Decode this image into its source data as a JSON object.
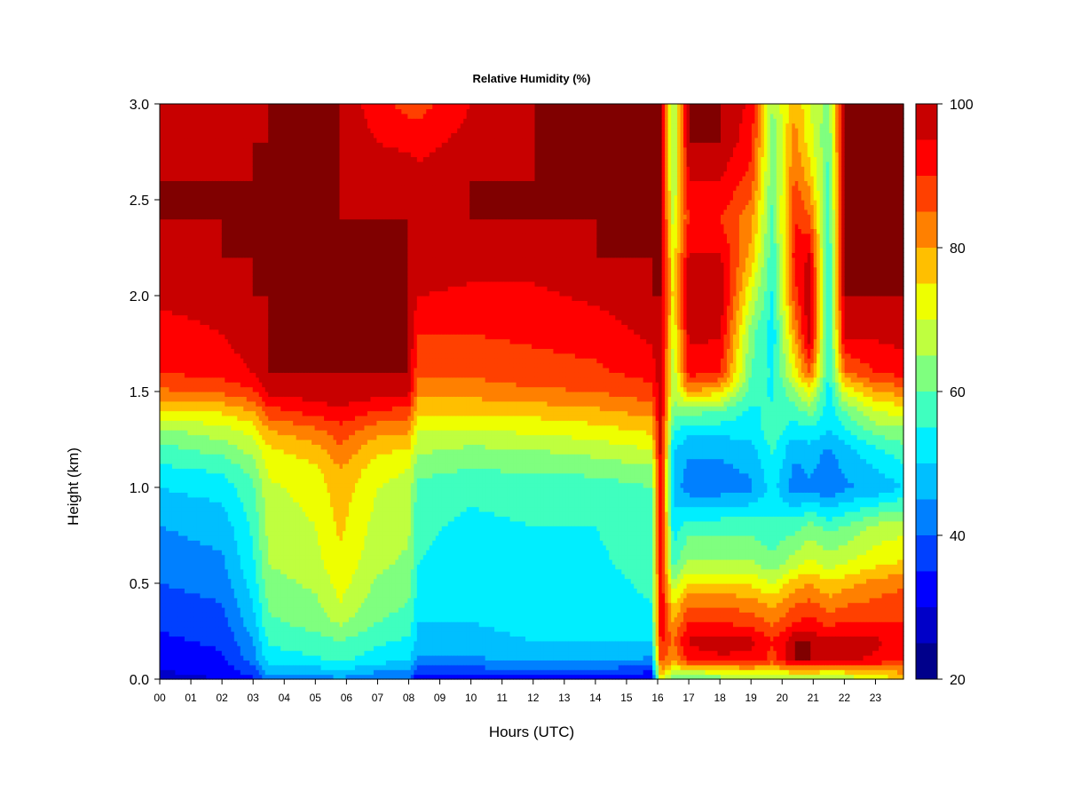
{
  "chart_data": {
    "type": "heatmap",
    "title": "Relative Humidity (%)",
    "xlabel": "Hours (UTC)",
    "ylabel": "Height (km)",
    "xlim": [
      0,
      23.9
    ],
    "ylim": [
      0.0,
      3.0
    ],
    "x_tick_values": [
      0,
      1,
      2,
      3,
      4,
      5,
      6,
      7,
      8,
      9,
      10,
      11,
      12,
      13,
      14,
      15,
      16,
      17,
      18,
      19,
      20,
      21,
      22,
      23
    ],
    "x_tick_labels": [
      "00",
      "01",
      "02",
      "03",
      "04",
      "05",
      "06",
      "07",
      "08",
      "09",
      "10",
      "11",
      "12",
      "13",
      "14",
      "15",
      "16",
      "17",
      "18",
      "19",
      "20",
      "21",
      "22",
      "23"
    ],
    "y_tick_values": [
      0.0,
      0.5,
      1.0,
      1.5,
      2.0,
      2.5,
      3.0
    ],
    "y_tick_labels": [
      "0.0",
      "0.5",
      "1.0",
      "1.5",
      "2.0",
      "2.5",
      "3.0"
    ],
    "colorbar": {
      "min": 20,
      "max": 100,
      "tick_values": [
        20,
        40,
        60,
        80,
        100
      ],
      "tick_labels": [
        "20",
        "40",
        "60",
        "80",
        "100"
      ],
      "levels": [
        20,
        25,
        30,
        35,
        40,
        45,
        50,
        55,
        60,
        65,
        70,
        75,
        80,
        85,
        90,
        95,
        100
      ],
      "colors": [
        "#00008B",
        "#0000C8",
        "#0000FF",
        "#0040FF",
        "#0080FF",
        "#00BFFF",
        "#00EEFF",
        "#3FFFBF",
        "#7FFF7F",
        "#BFFF3F",
        "#EEFF00",
        "#FFBF00",
        "#FF8000",
        "#FF4000",
        "#FF0000",
        "#C80000",
        "#800000"
      ]
    },
    "profile_heights": [
      0.0,
      0.05,
      0.1,
      0.2,
      0.3,
      0.4,
      0.5,
      0.6,
      0.8,
      1.0,
      1.1,
      1.2,
      1.3,
      1.4,
      1.5,
      1.6,
      1.8,
      2.0,
      2.2,
      2.4,
      2.6,
      2.8,
      3.0
    ],
    "profiles": [
      {
        "hour": 0.0,
        "rh": [
          28,
          30,
          32,
          34,
          36,
          38,
          40,
          42,
          45,
          50,
          54,
          58,
          64,
          74,
          84,
          90,
          93,
          96,
          98,
          99,
          99,
          97,
          95
        ]
      },
      {
        "hour": 2.0,
        "rh": [
          30,
          32,
          34,
          36,
          38,
          40,
          42,
          44,
          47,
          52,
          56,
          62,
          68,
          76,
          86,
          92,
          95,
          97,
          99,
          99,
          99,
          98,
          97
        ]
      },
      {
        "hour": 3.0,
        "rh": [
          34,
          38,
          42,
          45,
          48,
          50,
          52,
          54,
          56,
          59,
          62,
          67,
          72,
          80,
          89,
          95,
          98,
          99,
          99,
          99,
          99,
          99,
          98
        ]
      },
      {
        "hour": 3.5,
        "rh": [
          42,
          48,
          52,
          56,
          59,
          61,
          63,
          65,
          67,
          69,
          71,
          74,
          80,
          88,
          96,
          99,
          99,
          99,
          99,
          99,
          99,
          99,
          99
        ]
      },
      {
        "hour": 5.0,
        "rh": [
          42,
          48,
          54,
          58,
          62,
          64,
          66,
          68,
          70,
          72,
          74,
          78,
          84,
          92,
          98,
          99,
          99,
          99,
          99,
          99,
          99,
          99,
          99
        ]
      },
      {
        "hour": 5.8,
        "rh": [
          44,
          50,
          56,
          60,
          66,
          70,
          72,
          74,
          76,
          78,
          80,
          84,
          88,
          94,
          99,
          99,
          99,
          99,
          99,
          99,
          99,
          99,
          99
        ]
      },
      {
        "hour": 7.0,
        "rh": [
          40,
          46,
          52,
          56,
          60,
          62,
          64,
          66,
          68,
          70,
          72,
          76,
          82,
          90,
          97,
          99,
          99,
          99,
          99,
          99,
          98,
          95,
          92
        ]
      },
      {
        "hour": 8.0,
        "rh": [
          40,
          45,
          50,
          54,
          58,
          60,
          62,
          64,
          66,
          68,
          70,
          75,
          81,
          88,
          96,
          99,
          99,
          99,
          99,
          99,
          98,
          94,
          88
        ]
      },
      {
        "hour": 8.3,
        "rh": [
          30,
          38,
          44,
          48,
          50,
          52,
          54,
          55,
          56,
          58,
          62,
          66,
          70,
          76,
          82,
          86,
          90,
          95,
          98,
          99,
          97,
          93,
          88
        ]
      },
      {
        "hour": 10.0,
        "rh": [
          32,
          38,
          44,
          48,
          50,
          51,
          52,
          53,
          54,
          56,
          60,
          64,
          70,
          76,
          82,
          86,
          90,
          94,
          97,
          99,
          99,
          97,
          95
        ]
      },
      {
        "hour": 12.0,
        "rh": [
          33,
          40,
          46,
          50,
          52,
          53,
          53,
          54,
          55,
          57,
          61,
          65,
          71,
          77,
          84,
          88,
          91,
          94,
          97,
          99,
          99,
          99,
          99
        ]
      },
      {
        "hour": 14.0,
        "rh": [
          33,
          40,
          46,
          50,
          52,
          53,
          53,
          54,
          55,
          57,
          62,
          67,
          73,
          79,
          85,
          89,
          92,
          96,
          99,
          99,
          99,
          99,
          99
        ]
      },
      {
        "hour": 15.8,
        "rh": [
          30,
          36,
          44,
          50,
          54,
          55,
          56,
          57,
          58,
          60,
          64,
          70,
          76,
          82,
          88,
          92,
          96,
          99,
          99,
          99,
          99,
          99,
          99
        ]
      },
      {
        "hour": 16.1,
        "rh": [
          70,
          80,
          88,
          92,
          94,
          95,
          95,
          95,
          95,
          96,
          96,
          97,
          97,
          98,
          98,
          98,
          99,
          99,
          99,
          99,
          99,
          99,
          99
        ]
      },
      {
        "hour": 16.5,
        "rh": [
          60,
          70,
          80,
          84,
          80,
          74,
          66,
          58,
          52,
          48,
          48,
          50,
          56,
          62,
          66,
          66,
          70,
          74,
          72,
          68,
          64,
          64,
          64
        ]
      },
      {
        "hour": 17.0,
        "rh": [
          60,
          72,
          92,
          96,
          90,
          84,
          76,
          66,
          58,
          42,
          44,
          46,
          52,
          62,
          80,
          92,
          96,
          99,
          96,
          90,
          95,
          99,
          99
        ]
      },
      {
        "hour": 18.0,
        "rh": [
          62,
          74,
          94,
          97,
          90,
          84,
          76,
          66,
          58,
          42,
          44,
          46,
          52,
          60,
          76,
          90,
          96,
          99,
          96,
          90,
          95,
          99,
          99
        ]
      },
      {
        "hour": 19.0,
        "rh": [
          64,
          76,
          94,
          96,
          88,
          82,
          74,
          66,
          58,
          44,
          46,
          48,
          52,
          54,
          58,
          60,
          62,
          70,
          78,
          82,
          88,
          92,
          94
        ]
      },
      {
        "hour": 19.7,
        "rh": [
          64,
          74,
          88,
          90,
          84,
          78,
          70,
          62,
          56,
          52,
          54,
          56,
          58,
          56,
          54,
          54,
          52,
          54,
          56,
          58,
          60,
          62,
          64
        ]
      },
      {
        "hour": 20.4,
        "rh": [
          64,
          80,
          99,
          99,
          90,
          84,
          78,
          68,
          58,
          42,
          44,
          46,
          52,
          58,
          64,
          72,
          80,
          88,
          92,
          90,
          86,
          82,
          80
        ]
      },
      {
        "hour": 20.9,
        "rh": [
          62,
          80,
          99,
          99,
          92,
          86,
          80,
          72,
          62,
          44,
          46,
          48,
          54,
          62,
          72,
          86,
          99,
          99,
          96,
          86,
          78,
          72,
          70
        ]
      },
      {
        "hour": 21.5,
        "rh": [
          64,
          78,
          96,
          96,
          88,
          82,
          76,
          68,
          58,
          40,
          42,
          44,
          50,
          52,
          52,
          54,
          52,
          52,
          54,
          56,
          58,
          60,
          62
        ]
      },
      {
        "hour": 22.0,
        "rh": [
          66,
          78,
          96,
          98,
          90,
          84,
          78,
          70,
          60,
          44,
          46,
          48,
          54,
          60,
          70,
          84,
          96,
          99,
          99,
          99,
          99,
          99,
          99
        ]
      },
      {
        "hour": 23.0,
        "rh": [
          70,
          80,
          94,
          96,
          90,
          86,
          82,
          74,
          66,
          46,
          50,
          54,
          62,
          70,
          80,
          90,
          96,
          99,
          99,
          99,
          99,
          99,
          99
        ]
      },
      {
        "hour": 23.9,
        "rh": [
          76,
          82,
          90,
          92,
          90,
          88,
          84,
          76,
          68,
          50,
          54,
          58,
          64,
          72,
          82,
          92,
          97,
          99,
          99,
          99,
          99,
          99,
          99
        ]
      }
    ]
  }
}
